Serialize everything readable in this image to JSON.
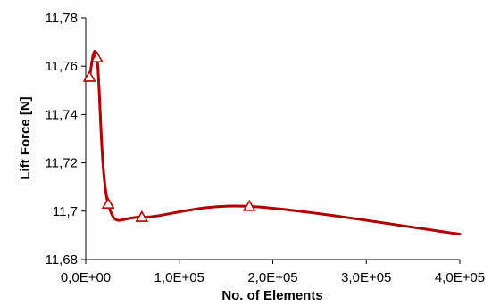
{
  "chart_data": {
    "type": "line",
    "title": "",
    "xlabel": "No. of Elements",
    "ylabel": "Lift Force [N]",
    "xlim": [
      0,
      400000
    ],
    "ylim": [
      11.68,
      11.78
    ],
    "x_ticks": [
      {
        "value": 0,
        "label": "0,0E+00"
      },
      {
        "value": 100000,
        "label": "1,0E+05"
      },
      {
        "value": 200000,
        "label": "2,0E+05"
      },
      {
        "value": 300000,
        "label": "3,0E+05"
      },
      {
        "value": 400000,
        "label": "4,0E+05"
      }
    ],
    "y_ticks": [
      {
        "value": 11.68,
        "label": "11,68"
      },
      {
        "value": 11.7,
        "label": "11,7"
      },
      {
        "value": 11.72,
        "label": "11,72"
      },
      {
        "value": 11.74,
        "label": "11,74"
      },
      {
        "value": 11.76,
        "label": "11,76"
      },
      {
        "value": 11.78,
        "label": "11,78"
      }
    ],
    "grid": false,
    "legend": "none",
    "series": [
      {
        "color": "#b00000",
        "marker": "open-triangle",
        "smooth": true,
        "points": [
          {
            "x": 4000,
            "y": 11.7555
          },
          {
            "x": 12000,
            "y": 11.7635
          },
          {
            "x": 24000,
            "y": 11.703
          },
          {
            "x": 60000,
            "y": 11.6975
          },
          {
            "x": 175000,
            "y": 11.702
          },
          {
            "x": 400000,
            "y": 11.6905
          }
        ],
        "marker_indices": [
          0,
          1,
          2,
          3,
          4
        ]
      }
    ]
  }
}
